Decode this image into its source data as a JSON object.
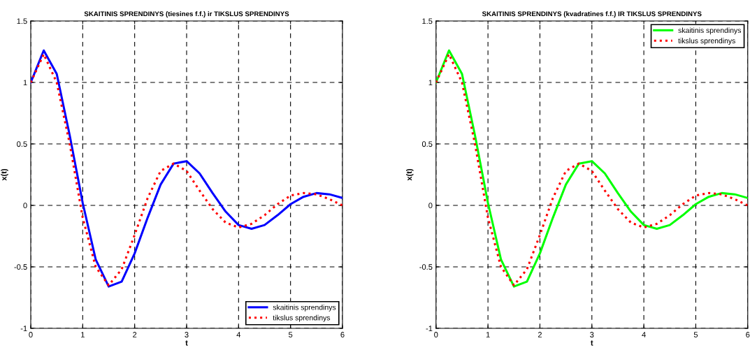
{
  "chart_data": [
    {
      "type": "line",
      "title": "SKAITINIS SPRENDINYS (tiesines f.f.) ir TIKSLUS SPRENDINYS",
      "xlabel": "t",
      "ylabel": "x(t)",
      "x": [
        0,
        0.25,
        0.5,
        0.75,
        1.0,
        1.25,
        1.5,
        1.75,
        2.0,
        2.25,
        2.5,
        2.75,
        3.0,
        3.25,
        3.5,
        3.75,
        4.0,
        4.25,
        4.5,
        4.75,
        5.0,
        5.25,
        5.5,
        5.75,
        6.0
      ],
      "series": [
        {
          "name": "skaitinis sprendinys",
          "color": "#0000ff",
          "line_style": "solid",
          "values": [
            1.0,
            1.26,
            1.07,
            0.57,
            0.02,
            -0.44,
            -0.66,
            -0.62,
            -0.39,
            -0.1,
            0.17,
            0.34,
            0.36,
            0.26,
            0.1,
            -0.05,
            -0.16,
            -0.19,
            -0.16,
            -0.08,
            0.01,
            0.07,
            0.1,
            0.09,
            0.06
          ]
        },
        {
          "name": "tikslus sprendinys",
          "color": "#ff0000",
          "line_style": "dotted",
          "values": [
            1.0,
            1.23,
            1.0,
            0.5,
            -0.1,
            -0.5,
            -0.65,
            -0.52,
            -0.24,
            0.06,
            0.28,
            0.34,
            0.28,
            0.12,
            -0.03,
            -0.14,
            -0.18,
            -0.15,
            -0.08,
            0.01,
            0.08,
            0.1,
            0.09,
            0.05,
            0.0
          ]
        }
      ],
      "xlim": [
        0,
        6
      ],
      "ylim": [
        -1,
        1.5
      ],
      "xticks": [
        0,
        1,
        2,
        3,
        4,
        5,
        6
      ],
      "yticks": [
        -1,
        -0.5,
        0,
        0.5,
        1,
        1.5
      ],
      "grid": true,
      "legend": "bottom right"
    },
    {
      "type": "line",
      "title": "SKAITINIS SPRENDINYS (kvadratines f.f.) IR TIKSLUS SPRENDINYS",
      "xlabel": "t",
      "ylabel": "x(t)",
      "x": [
        0,
        0.25,
        0.5,
        0.75,
        1.0,
        1.25,
        1.5,
        1.75,
        2.0,
        2.25,
        2.5,
        2.75,
        3.0,
        3.25,
        3.5,
        3.75,
        4.0,
        4.25,
        4.5,
        4.75,
        5.0,
        5.25,
        5.5,
        5.75,
        6.0
      ],
      "series": [
        {
          "name": "skaitinis sprendinys",
          "color": "#00ff00",
          "line_style": "solid",
          "values": [
            1.0,
            1.26,
            1.07,
            0.57,
            0.02,
            -0.44,
            -0.66,
            -0.62,
            -0.39,
            -0.1,
            0.17,
            0.34,
            0.36,
            0.26,
            0.1,
            -0.05,
            -0.16,
            -0.19,
            -0.16,
            -0.08,
            0.01,
            0.07,
            0.1,
            0.09,
            0.06
          ]
        },
        {
          "name": "tikslus sprendinys",
          "color": "#ff0000",
          "line_style": "dotted",
          "values": [
            1.0,
            1.23,
            1.0,
            0.5,
            -0.1,
            -0.5,
            -0.65,
            -0.52,
            -0.24,
            0.06,
            0.28,
            0.34,
            0.28,
            0.12,
            -0.03,
            -0.14,
            -0.18,
            -0.15,
            -0.08,
            0.01,
            0.08,
            0.1,
            0.09,
            0.05,
            0.0
          ]
        }
      ],
      "xlim": [
        0,
        6
      ],
      "ylim": [
        -1,
        1.5
      ],
      "xticks": [
        0,
        1,
        2,
        3,
        4,
        5,
        6
      ],
      "yticks": [
        -1,
        -0.5,
        0,
        0.5,
        1,
        1.5
      ],
      "grid": true,
      "legend": "top right"
    }
  ]
}
